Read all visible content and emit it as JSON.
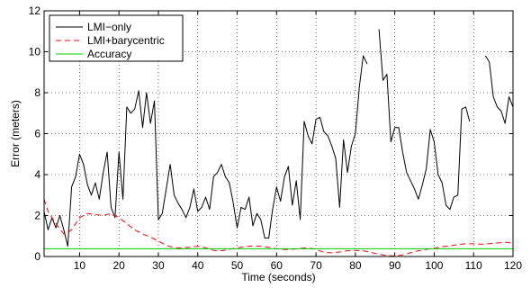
{
  "chart_data": {
    "type": "line",
    "title": "",
    "xlabel": "Time (seconds)",
    "ylabel": "Error (meters)",
    "xlim": [
      1,
      120
    ],
    "ylim": [
      0,
      12
    ],
    "xticks": [
      10,
      20,
      30,
      40,
      50,
      60,
      70,
      80,
      90,
      100,
      110,
      120
    ],
    "yticks": [
      0,
      2,
      4,
      6,
      8,
      10,
      12
    ],
    "grid": true,
    "legend_position": "top-left",
    "series": [
      {
        "name": "LMI−only",
        "color": "#000000",
        "style": "solid",
        "segments": [
          [
            [
              1,
              2.2
            ],
            [
              2,
              1.3
            ],
            [
              3,
              1.9
            ],
            [
              4,
              1.4
            ],
            [
              5,
              2.0
            ],
            [
              6,
              1.3
            ],
            [
              7,
              0.5
            ],
            [
              8,
              3.4
            ],
            [
              9,
              3.9
            ],
            [
              10,
              5.0
            ],
            [
              11,
              4.5
            ],
            [
              12,
              3.5
            ],
            [
              13,
              3.0
            ],
            [
              14,
              3.6
            ],
            [
              15,
              2.8
            ],
            [
              16,
              4.1
            ],
            [
              17,
              5.1
            ],
            [
              18,
              2.4
            ],
            [
              19,
              1.9
            ],
            [
              20,
              5.1
            ],
            [
              21,
              2.8
            ],
            [
              22,
              7.3
            ],
            [
              23,
              7.0
            ],
            [
              24,
              7.2
            ],
            [
              25,
              8.1
            ],
            [
              26,
              6.3
            ],
            [
              27,
              8.0
            ],
            [
              28,
              6.5
            ],
            [
              29,
              7.6
            ],
            [
              30,
              1.8
            ],
            [
              31,
              2.1
            ],
            [
              32,
              3.3
            ],
            [
              33,
              4.5
            ],
            [
              34,
              3.0
            ],
            [
              35,
              2.6
            ],
            [
              36,
              2.3
            ],
            [
              37,
              1.9
            ],
            [
              38,
              2.4
            ],
            [
              39,
              3.3
            ],
            [
              40,
              2.2
            ],
            [
              41,
              2.4
            ],
            [
              42,
              2.9
            ],
            [
              43,
              2.3
            ],
            [
              44,
              3.9
            ],
            [
              45,
              4.1
            ],
            [
              46,
              4.5
            ],
            [
              47,
              3.9
            ],
            [
              48,
              3.6
            ],
            [
              49,
              2.6
            ],
            [
              50,
              1.4
            ],
            [
              51,
              2.4
            ],
            [
              52,
              2.3
            ],
            [
              53,
              2.9
            ],
            [
              54,
              1.5
            ],
            [
              55,
              2.1
            ],
            [
              56,
              1.8
            ],
            [
              57,
              0.9
            ],
            [
              58,
              0.9
            ],
            [
              59,
              2.3
            ],
            [
              60,
              3.4
            ],
            [
              61,
              2.7
            ],
            [
              62,
              3.9
            ],
            [
              63,
              4.4
            ],
            [
              64,
              2.5
            ],
            [
              65,
              3.7
            ],
            [
              66,
              1.8
            ],
            [
              67,
              6.6
            ],
            [
              68,
              5.9
            ],
            [
              69,
              5.5
            ],
            [
              70,
              6.7
            ],
            [
              71,
              6.8
            ],
            [
              72,
              6.1
            ],
            [
              73,
              5.9
            ],
            [
              74,
              5.4
            ],
            [
              75,
              4.8
            ],
            [
              76,
              2.4
            ],
            [
              77,
              5.7
            ],
            [
              78,
              4.1
            ],
            [
              79,
              5.4
            ],
            [
              80,
              6.0
            ],
            [
              81,
              8.3
            ],
            [
              82,
              9.8
            ],
            [
              83,
              9.4
            ]
          ],
          [
            [
              86,
              11.1
            ],
            [
              87,
              8.6
            ],
            [
              88,
              8.9
            ],
            [
              89,
              5.6
            ],
            [
              90,
              6.3
            ],
            [
              91,
              6.3
            ],
            [
              92,
              5.1
            ],
            [
              93,
              4.1
            ],
            [
              94,
              3.7
            ],
            [
              95,
              3.3
            ],
            [
              96,
              2.8
            ],
            [
              97,
              3.5
            ],
            [
              98,
              4.3
            ],
            [
              99,
              6.2
            ],
            [
              100,
              5.6
            ],
            [
              101,
              4.0
            ],
            [
              102,
              3.6
            ],
            [
              103,
              2.5
            ],
            [
              104,
              2.3
            ],
            [
              105,
              2.9
            ],
            [
              106,
              3.0
            ],
            [
              107,
              7.2
            ],
            [
              108,
              7.3
            ],
            [
              109,
              6.6
            ]
          ],
          [
            [
              113,
              9.8
            ],
            [
              114,
              9.5
            ],
            [
              115,
              7.8
            ],
            [
              116,
              7.3
            ],
            [
              117,
              7.1
            ],
            [
              118,
              6.5
            ],
            [
              119,
              7.8
            ],
            [
              120,
              7.3
            ]
          ]
        ]
      },
      {
        "name": "LMI+barycentric",
        "color": "#ff0000",
        "style": "dashed",
        "segments": [
          [
            [
              1,
              2.8
            ],
            [
              2,
              2.2
            ],
            [
              4,
              1.6
            ],
            [
              6,
              1.1
            ],
            [
              8,
              1.3
            ],
            [
              10,
              1.9
            ],
            [
              12,
              2.1
            ],
            [
              14,
              2.05
            ],
            [
              16,
              2.0
            ],
            [
              18,
              2.1
            ],
            [
              20,
              1.9
            ],
            [
              22,
              1.6
            ],
            [
              24,
              1.3
            ],
            [
              26,
              1.1
            ],
            [
              28,
              0.95
            ],
            [
              30,
              0.75
            ],
            [
              32,
              0.55
            ],
            [
              34,
              0.42
            ],
            [
              36,
              0.42
            ],
            [
              38,
              0.45
            ],
            [
              40,
              0.5
            ],
            [
              42,
              0.42
            ],
            [
              44,
              0.3
            ],
            [
              46,
              0.28
            ],
            [
              48,
              0.35
            ],
            [
              50,
              0.42
            ],
            [
              52,
              0.48
            ],
            [
              54,
              0.52
            ],
            [
              56,
              0.5
            ],
            [
              58,
              0.45
            ],
            [
              60,
              0.38
            ],
            [
              62,
              0.34
            ],
            [
              64,
              0.35
            ],
            [
              66,
              0.4
            ],
            [
              68,
              0.42
            ],
            [
              70,
              0.35
            ],
            [
              72,
              0.2
            ],
            [
              74,
              0.18
            ],
            [
              76,
              0.22
            ],
            [
              78,
              0.28
            ],
            [
              80,
              0.3
            ],
            [
              82,
              0.28
            ],
            [
              84,
              0.2
            ],
            [
              86,
              0.1
            ],
            [
              88,
              0.05
            ],
            [
              90,
              0.02
            ],
            [
              92,
              0.08
            ],
            [
              94,
              0.18
            ],
            [
              96,
              0.28
            ],
            [
              98,
              0.35
            ],
            [
              100,
              0.4
            ],
            [
              102,
              0.48
            ],
            [
              104,
              0.52
            ],
            [
              106,
              0.58
            ],
            [
              108,
              0.62
            ],
            [
              110,
              0.62
            ],
            [
              112,
              0.6
            ],
            [
              114,
              0.63
            ],
            [
              116,
              0.66
            ],
            [
              118,
              0.7
            ],
            [
              120,
              0.66
            ]
          ]
        ]
      },
      {
        "name": "Accuracy",
        "color": "#00cc00",
        "style": "solid",
        "segments": [
          [
            [
              1,
              0.38
            ],
            [
              120,
              0.38
            ]
          ]
        ]
      }
    ]
  }
}
